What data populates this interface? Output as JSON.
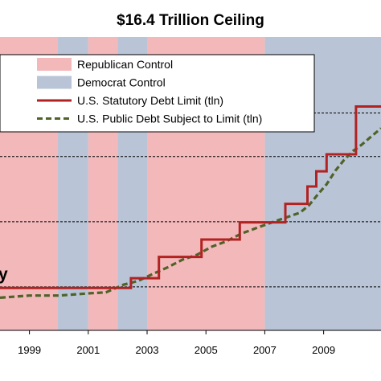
{
  "chart_data": {
    "type": "line",
    "title": "$16.4 Trillion Ceiling",
    "xlabel": "",
    "ylabel": "",
    "xlim": [
      1998.0,
      2010.95
    ],
    "ylim": [
      4.0,
      17.5
    ],
    "x_tick_labels": [
      "1999",
      "2001",
      "2003",
      "2005",
      "2007",
      "2009"
    ],
    "x_ticks": [
      1999,
      2001,
      2003,
      2005,
      2007,
      2009
    ],
    "grid": "dashed horizontal reference lines",
    "reference_lines": [
      6.0,
      9.0,
      12.0,
      14.0
    ],
    "partial_label": "y",
    "control_periods": [
      {
        "party": "Republican",
        "from": 1998.0,
        "to": 1999.95
      },
      {
        "party": "Democrat",
        "from": 1999.95,
        "to": 2001.0
      },
      {
        "party": "Republican",
        "from": 2001.0,
        "to": 2002.0
      },
      {
        "party": "Democrat",
        "from": 2002.0,
        "to": 2003.0
      },
      {
        "party": "Republican",
        "from": 2003.0,
        "to": 2007.0
      },
      {
        "party": "Democrat",
        "from": 2007.0,
        "to": 2010.95
      }
    ],
    "series": [
      {
        "name": "U.S. Statutory Debt Limit (tln)",
        "color": "#b22222",
        "style": "solid",
        "x": [
          1998.0,
          2002.45,
          2002.45,
          2003.4,
          2003.4,
          2004.85,
          2004.85,
          2006.15,
          2006.15,
          2007.7,
          2007.7,
          2008.45,
          2008.45,
          2008.75,
          2008.75,
          2009.1,
          2009.1,
          2010.1,
          2010.1,
          2010.95
        ],
        "y": [
          5.95,
          5.95,
          6.4,
          6.4,
          7.38,
          7.38,
          8.18,
          8.18,
          8.97,
          8.97,
          9.82,
          9.82,
          10.62,
          10.62,
          11.32,
          11.32,
          12.1,
          12.1,
          14.3,
          14.3
        ]
      },
      {
        "name": "U.S. Public Debt Subject to Limit (tln)",
        "color": "#4f6228",
        "style": "dashed",
        "x": [
          1998.0,
          1999.0,
          2000.0,
          2001.0,
          2001.6,
          2002.2,
          2002.7,
          2003.2,
          2003.7,
          2004.2,
          2004.7,
          2005.2,
          2005.7,
          2006.2,
          2006.7,
          2007.2,
          2007.7,
          2008.2,
          2008.5,
          2008.8,
          2009.1,
          2009.4,
          2009.7,
          2010.0,
          2010.3,
          2010.6,
          2010.95
        ],
        "y": [
          5.5,
          5.6,
          5.6,
          5.7,
          5.75,
          6.1,
          6.28,
          6.6,
          6.9,
          7.25,
          7.48,
          7.85,
          8.1,
          8.45,
          8.7,
          8.95,
          9.18,
          9.42,
          9.75,
          10.25,
          10.72,
          11.35,
          11.85,
          12.25,
          12.55,
          12.9,
          13.3
        ]
      }
    ],
    "legend": {
      "position": "top",
      "entries": [
        {
          "label": "Republican Control",
          "kind": "patch",
          "color": "#f2b8ba"
        },
        {
          "label": "Democrat Control",
          "kind": "patch",
          "color": "#b9c4d6"
        },
        {
          "label": "U.S. Statutory Debt Limit (tln)",
          "kind": "line",
          "color": "#b22222",
          "style": "solid"
        },
        {
          "label": "U.S. Public Debt Subject to Limit (tln)",
          "kind": "line",
          "color": "#4f6228",
          "style": "dashed"
        }
      ]
    },
    "colors": {
      "republican": "#f2b8ba",
      "democrat": "#b9c4d6",
      "reference_line": "#000000",
      "axis": "#000000"
    }
  }
}
